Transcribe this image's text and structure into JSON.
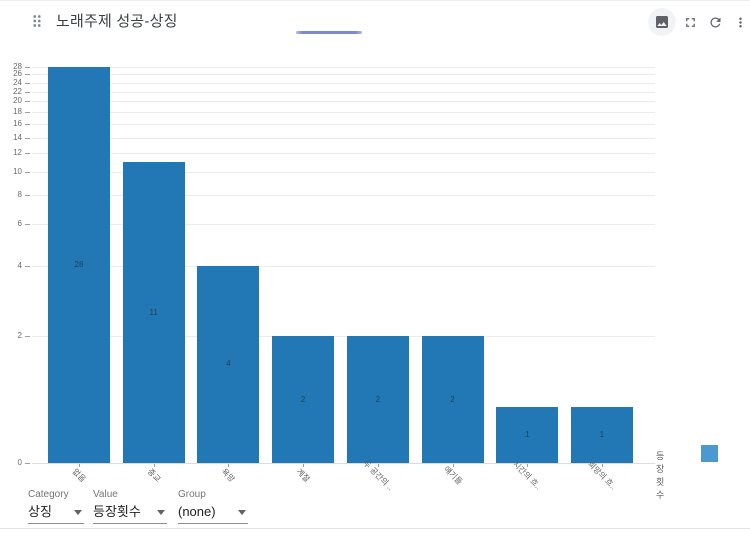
{
  "header": {
    "title": "노래주제 성공-상징",
    "icons": [
      "drag-indicator-icon",
      "image-icon",
      "fullscreen-icon",
      "refresh-icon",
      "more-vert-icon"
    ]
  },
  "chart_data": {
    "type": "bar",
    "title": "노래주제 성공-상징",
    "categories": [
      "없음",
      "종교",
      "욕망",
      "계절",
      "두 공간의 ..",
      "얘기들",
      "시간의 흐..",
      "희망의 흐.."
    ],
    "values": [
      28,
      11,
      4,
      2,
      2,
      2,
      1,
      1
    ],
    "value_labels": [
      "28",
      "11",
      "4",
      "2",
      "2",
      "2",
      "1",
      "1"
    ],
    "series": [
      {
        "name": "등장횟수",
        "values": [
          28,
          11,
          4,
          2,
          2,
          2,
          1,
          1
        ]
      }
    ],
    "y_ticks": [
      0,
      2,
      4,
      6,
      8,
      10,
      12,
      14,
      16,
      18,
      20,
      22,
      24,
      26,
      28
    ],
    "ylim": [
      0,
      28
    ],
    "y_scale": "log",
    "grid": true,
    "xlabel": "",
    "ylabel": "",
    "bar_color": "#2178b5",
    "legend": {
      "label": "등장횟수",
      "color": "#4c99d2",
      "position": "bottom-right"
    }
  },
  "controls": {
    "category": {
      "label": "Category",
      "value": "상징"
    },
    "value": {
      "label": "Value",
      "value": "등장횟수"
    },
    "group": {
      "label": "Group",
      "value": "(none)"
    }
  },
  "colors": {
    "accent_progress": "#7d89cd",
    "bar": "#2178b5",
    "legend_swatch": "#4c99d2"
  }
}
